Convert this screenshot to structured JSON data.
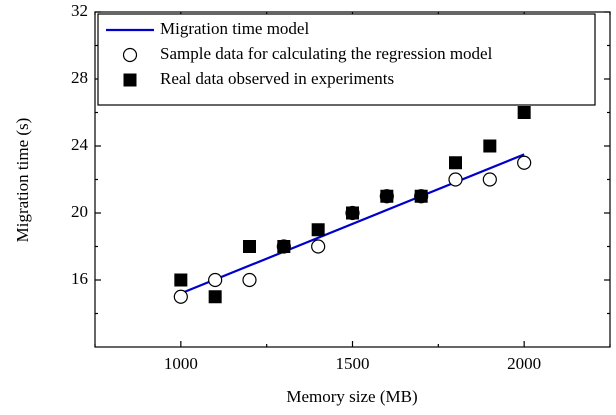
{
  "chart_data": {
    "type": "scatter",
    "x_label": "Memory size (MB)",
    "y_label": "Migration time (s)",
    "xlim": [
      750,
      2250
    ],
    "xticks": [
      1000,
      1500,
      2000
    ],
    "ylim": [
      12,
      32
    ],
    "yticks": [
      16,
      20,
      24,
      28,
      32
    ],
    "legend": "upper left",
    "series": [
      {
        "name": "Migration time model",
        "color": "#0000cc",
        "kind": "line",
        "x": [
          1000,
          2000
        ],
        "values": [
          15.2,
          23.5
        ]
      },
      {
        "name": "Sample data for calculating the regression model",
        "color": "#000000",
        "kind": "open-circle",
        "x": [
          1000,
          1100,
          1200,
          1300,
          1400,
          1500,
          1600,
          1700,
          1800,
          1900,
          2000
        ],
        "values": [
          15,
          16,
          16,
          18,
          18,
          20,
          21,
          21,
          22,
          22,
          23
        ]
      },
      {
        "name": "Real data observed in experiments",
        "color": "#000000",
        "kind": "filled-square",
        "x": [
          1000,
          1100,
          1200,
          1300,
          1400,
          1500,
          1600,
          1700,
          1800,
          1900,
          2000
        ],
        "values": [
          16,
          15,
          18,
          18,
          19,
          20,
          21,
          21,
          23,
          24,
          26
        ]
      }
    ]
  }
}
